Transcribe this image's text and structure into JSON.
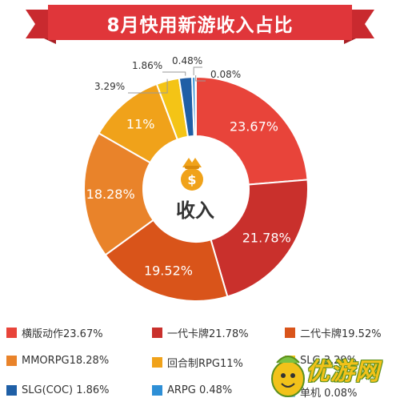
{
  "title": "8月快用新游收入占比",
  "center_label": "收入",
  "center_icon": "money-bag-icon",
  "colors": {
    "banner": "#e0363a",
    "banner_dark": "#a81f24"
  },
  "chart_data": {
    "type": "pie",
    "title": "8月快用新游收入占比",
    "categories": [
      "横版动作",
      "一代卡牌",
      "二代卡牌",
      "MMORPG",
      "回合制RPG",
      "SLG",
      "SLG(COC)",
      "ARPG",
      "单机"
    ],
    "values": [
      23.67,
      21.78,
      19.52,
      18.28,
      11,
      3.29,
      1.86,
      0.48,
      0.08
    ],
    "labels": [
      "23.67%",
      "21.78%",
      "19.52%",
      "18.28%",
      "11%",
      "3.29%",
      "1.86%",
      "0.48%",
      "0.08%"
    ],
    "colors": [
      "#e8443a",
      "#c9302c",
      "#d9541a",
      "#e9832a",
      "#f0a21a",
      "#f4c416",
      "#1f5fa6",
      "#2e8fd6",
      "#8fc8ee"
    ],
    "legend": [
      "横版动作23.67%",
      "一代卡牌21.78%",
      "二代卡牌19.52%",
      "MMORPG18.28%",
      "回合制RPG11%",
      "SLG 3.29%",
      "SLG(COC) 1.86%",
      "ARPG 0.48%",
      "单机 0.08%"
    ],
    "legend_placement": "bottom"
  },
  "watermark": "优游网"
}
